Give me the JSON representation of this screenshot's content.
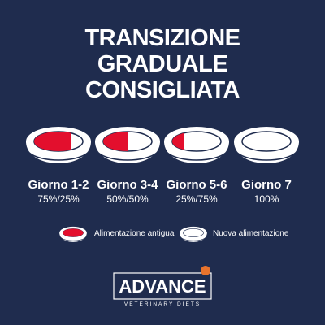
{
  "title": [
    "TRANSIZIONE",
    "GRADUALE",
    "CONSIGLIATA"
  ],
  "days": [
    {
      "label": "Giorno 1-2",
      "ratio": "75%/25%"
    },
    {
      "label": "Giorno 3-4",
      "ratio": "50%/50%"
    },
    {
      "label": "Giorno 5-6",
      "ratio": "25%/75%"
    },
    {
      "label": "Giorno 7",
      "ratio": "100%"
    }
  ],
  "legend": {
    "old": "Alimentazione antigua",
    "new": "Nuova alimentazione"
  },
  "brand": {
    "name": "ADVANCE",
    "tagline": "VETERINARY DIETS"
  }
}
